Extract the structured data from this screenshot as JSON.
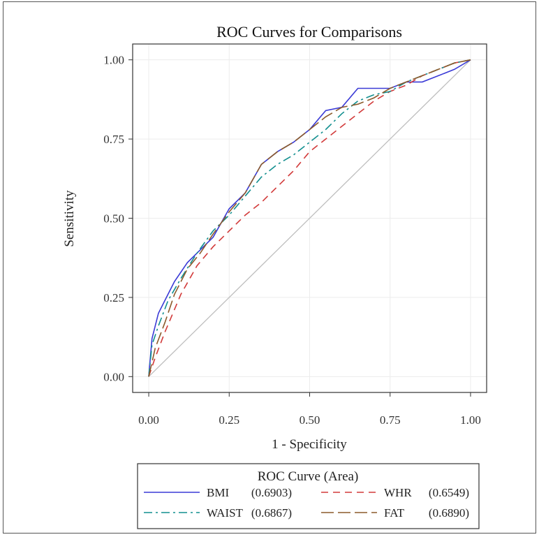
{
  "chart_data": {
    "type": "line",
    "title": "ROC Curves for Comparisons",
    "xlabel": "1 - Specificity",
    "ylabel": "Sensitivity",
    "xlim": [
      -0.05,
      1.05
    ],
    "ylim": [
      -0.05,
      1.05
    ],
    "xticks": [
      "0.00",
      "0.25",
      "0.50",
      "0.75",
      "1.00"
    ],
    "yticks": [
      "0.00",
      "0.25",
      "0.50",
      "0.75",
      "1.00"
    ],
    "grid": true,
    "reference_line": {
      "x": [
        0,
        1
      ],
      "y": [
        0,
        1
      ],
      "color": "#bdbdbd"
    },
    "legend": {
      "title": "ROC Curve (Area)",
      "placement": "bottom"
    },
    "series": [
      {
        "name": "BMI",
        "area": "(0.6903)",
        "color": "#3a3ad6",
        "dash": "solid",
        "x": [
          0,
          0.01,
          0.03,
          0.05,
          0.08,
          0.12,
          0.15,
          0.2,
          0.25,
          0.3,
          0.35,
          0.4,
          0.45,
          0.5,
          0.55,
          0.6,
          0.65,
          0.7,
          0.75,
          0.8,
          0.85,
          0.9,
          0.95,
          1.0
        ],
        "y": [
          0,
          0.12,
          0.2,
          0.24,
          0.3,
          0.36,
          0.39,
          0.44,
          0.53,
          0.58,
          0.67,
          0.71,
          0.74,
          0.78,
          0.84,
          0.85,
          0.91,
          0.91,
          0.91,
          0.93,
          0.93,
          0.95,
          0.97,
          1.0
        ]
      },
      {
        "name": "WHR",
        "area": "(0.6549)",
        "color": "#d23a3a",
        "dash": "10,7",
        "x": [
          0,
          0.02,
          0.05,
          0.1,
          0.15,
          0.2,
          0.25,
          0.3,
          0.35,
          0.4,
          0.45,
          0.5,
          0.55,
          0.6,
          0.65,
          0.7,
          0.75,
          0.8,
          0.85,
          0.9,
          0.95,
          1.0
        ],
        "y": [
          0,
          0.06,
          0.14,
          0.26,
          0.35,
          0.41,
          0.46,
          0.51,
          0.55,
          0.6,
          0.65,
          0.71,
          0.75,
          0.79,
          0.83,
          0.87,
          0.9,
          0.92,
          0.95,
          0.97,
          0.99,
          1.0
        ]
      },
      {
        "name": "WAIST",
        "area": "(0.6867)",
        "color": "#128f8f",
        "dash": "12,5,3,5",
        "x": [
          0,
          0.01,
          0.03,
          0.06,
          0.1,
          0.15,
          0.2,
          0.25,
          0.3,
          0.35,
          0.4,
          0.45,
          0.5,
          0.55,
          0.6,
          0.65,
          0.7,
          0.75,
          0.8,
          0.85,
          0.9,
          0.95,
          1.0
        ],
        "y": [
          0,
          0.1,
          0.16,
          0.24,
          0.31,
          0.39,
          0.46,
          0.51,
          0.57,
          0.63,
          0.67,
          0.7,
          0.74,
          0.78,
          0.83,
          0.87,
          0.89,
          0.9,
          0.93,
          0.95,
          0.97,
          0.99,
          1.0
        ]
      },
      {
        "name": "FAT",
        "area": "(0.6890)",
        "color": "#8b5a2b",
        "dash": "18,6",
        "x": [
          0,
          0.02,
          0.05,
          0.08,
          0.12,
          0.16,
          0.2,
          0.25,
          0.3,
          0.35,
          0.4,
          0.45,
          0.5,
          0.55,
          0.6,
          0.65,
          0.7,
          0.75,
          0.8,
          0.85,
          0.9,
          0.95,
          1.0
        ],
        "y": [
          0,
          0.09,
          0.17,
          0.26,
          0.34,
          0.39,
          0.45,
          0.52,
          0.58,
          0.67,
          0.71,
          0.74,
          0.78,
          0.82,
          0.85,
          0.86,
          0.88,
          0.91,
          0.93,
          0.95,
          0.97,
          0.99,
          1.0
        ]
      }
    ]
  }
}
